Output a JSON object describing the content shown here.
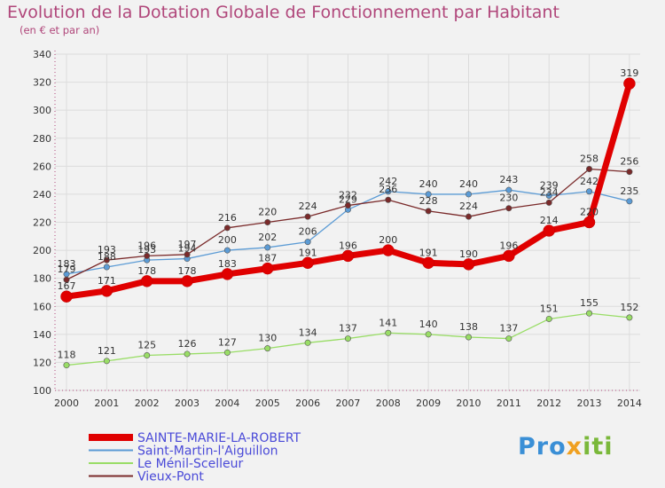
{
  "chart_data": {
    "type": "line",
    "title": "Evolution de la Dotation Globale de Fonctionnement par Habitant",
    "subtitle": "(en € et par an)",
    "xlabel": "",
    "ylabel": "",
    "ylim": [
      100,
      340
    ],
    "yticks": [
      100,
      120,
      140,
      160,
      180,
      200,
      220,
      240,
      260,
      280,
      300,
      320,
      340
    ],
    "categories": [
      "2000",
      "2001",
      "2002",
      "2003",
      "2004",
      "2005",
      "2006",
      "2007",
      "2008",
      "2009",
      "2010",
      "2011",
      "2012",
      "2013",
      "2014"
    ],
    "grid": true,
    "legend": "bottom-left",
    "series": [
      {
        "name": "SAINTE-MARIE-LA-ROBERT",
        "color": "#e00000",
        "values": [
          167,
          171,
          178,
          178,
          183,
          187,
          191,
          196,
          200,
          191,
          190,
          196,
          214,
          220,
          319
        ]
      },
      {
        "name": "Saint-Martin-l'Aiguillon",
        "color": "#5b9bd5",
        "values": [
          183,
          188,
          193,
          194,
          200,
          202,
          206,
          229,
          242,
          240,
          240,
          243,
          239,
          242,
          235
        ]
      },
      {
        "name": "Le Ménil-Scelleur",
        "color": "#99dd66",
        "values": [
          118,
          121,
          125,
          126,
          127,
          130,
          134,
          137,
          141,
          140,
          138,
          137,
          151,
          155,
          152
        ]
      },
      {
        "name": "Vieux-Pont",
        "color": "#7a2a2a",
        "values": [
          179,
          193,
          196,
          197,
          216,
          220,
          224,
          232,
          236,
          228,
          224,
          230,
          234,
          258,
          256
        ]
      }
    ]
  },
  "logo": {
    "text_a": "Pro",
    "text_b": "x",
    "text_c": "iti"
  }
}
